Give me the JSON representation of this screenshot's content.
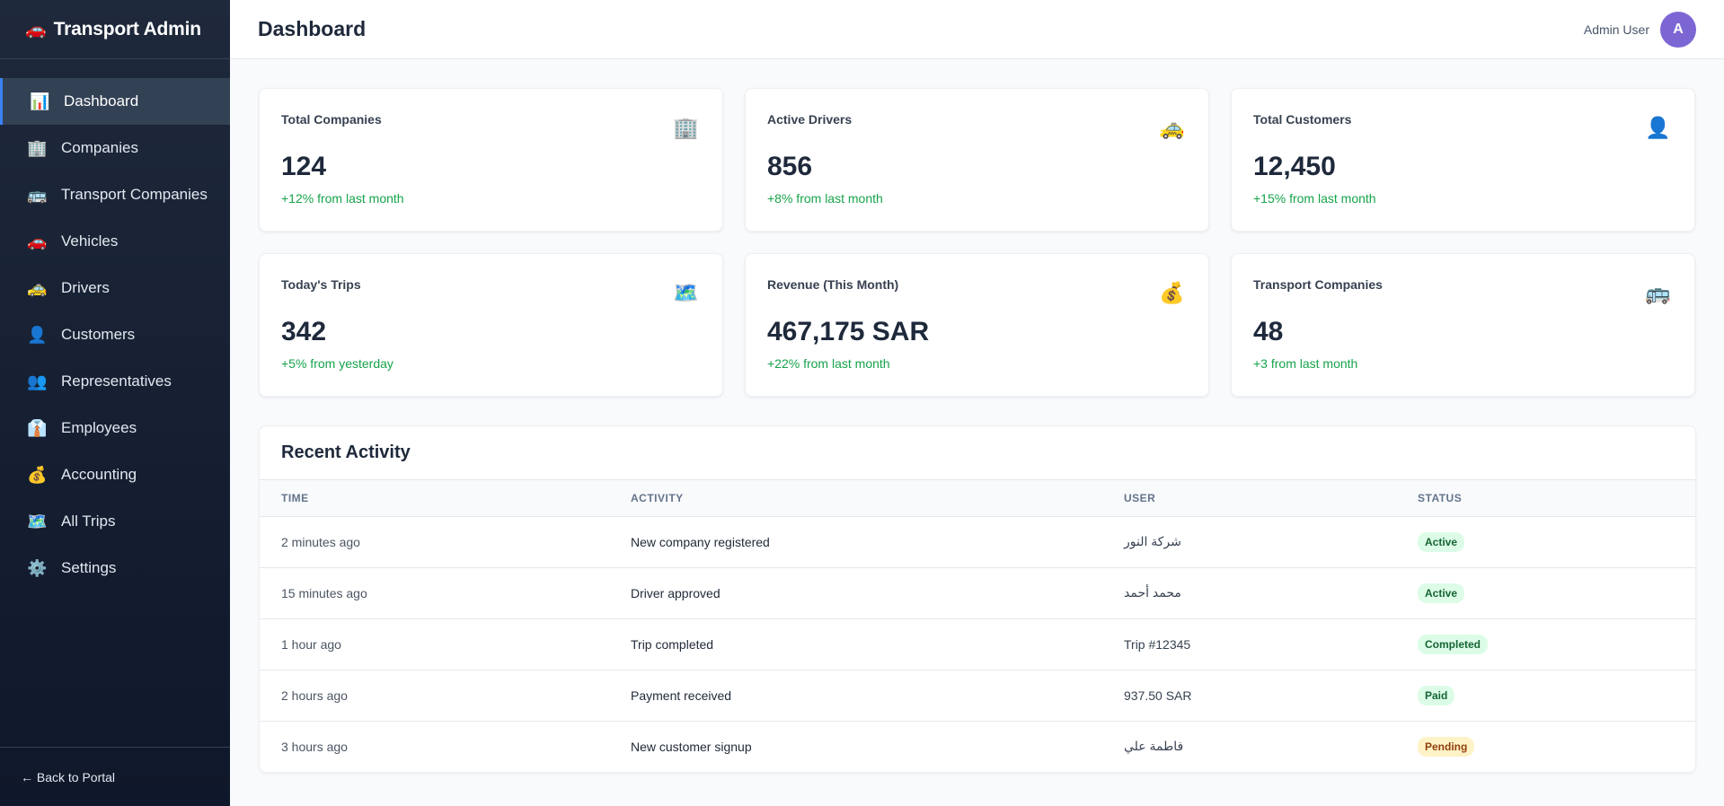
{
  "brand": {
    "title": "Transport Admin",
    "icon": "🚗"
  },
  "nav": [
    {
      "label": "Dashboard",
      "icon": "📊",
      "name": "dashboard",
      "active": true
    },
    {
      "label": "Companies",
      "icon": "🏢",
      "name": "companies"
    },
    {
      "label": "Transport Companies",
      "icon": "🚌",
      "name": "transport-companies"
    },
    {
      "label": "Vehicles",
      "icon": "🚗",
      "name": "vehicles"
    },
    {
      "label": "Drivers",
      "icon": "🚕",
      "name": "drivers"
    },
    {
      "label": "Customers",
      "icon": "👤",
      "name": "customers"
    },
    {
      "label": "Representatives",
      "icon": "👥",
      "name": "representatives"
    },
    {
      "label": "Employees",
      "icon": "👔",
      "name": "employees"
    },
    {
      "label": "Accounting",
      "icon": "💰",
      "name": "accounting"
    },
    {
      "label": "All Trips",
      "icon": "🗺️",
      "name": "all-trips"
    },
    {
      "label": "Settings",
      "icon": "⚙️",
      "name": "settings"
    }
  ],
  "footer": {
    "back_label": "← Back to Portal"
  },
  "header": {
    "title": "Dashboard",
    "user_name": "Admin User",
    "avatar_initial": "A"
  },
  "stats": [
    {
      "label": "Total Companies",
      "value": "124",
      "change": "+12% from last month",
      "icon": "🏢",
      "icon_name": "building-icon"
    },
    {
      "label": "Active Drivers",
      "value": "856",
      "change": "+8% from last month",
      "icon": "🚕",
      "icon_name": "taxi-icon"
    },
    {
      "label": "Total Customers",
      "value": "12,450",
      "change": "+15% from last month",
      "icon": "👤",
      "icon_name": "user-icon"
    },
    {
      "label": "Today's Trips",
      "value": "342",
      "change": "+5% from yesterday",
      "icon": "🗺️",
      "icon_name": "map-icon"
    },
    {
      "label": "Revenue (This Month)",
      "value": "467,175 SAR",
      "change": "+22% from last month",
      "icon": "💰",
      "icon_name": "money-bag-icon"
    },
    {
      "label": "Transport Companies",
      "value": "48",
      "change": "+3 from last month",
      "icon": "🚌",
      "icon_name": "bus-icon"
    }
  ],
  "activity": {
    "title": "Recent Activity",
    "columns": [
      "TIME",
      "ACTIVITY",
      "USER",
      "STATUS"
    ],
    "rows": [
      {
        "time": "2 minutes ago",
        "activity": "New company registered",
        "user": "شركة النور",
        "status": "Active",
        "tone": "green"
      },
      {
        "time": "15 minutes ago",
        "activity": "Driver approved",
        "user": "محمد أحمد",
        "status": "Active",
        "tone": "green"
      },
      {
        "time": "1 hour ago",
        "activity": "Trip completed",
        "user": "Trip #12345",
        "status": "Completed",
        "tone": "green"
      },
      {
        "time": "2 hours ago",
        "activity": "Payment received",
        "user": "937.50 SAR",
        "status": "Paid",
        "tone": "green"
      },
      {
        "time": "3 hours ago",
        "activity": "New customer signup",
        "user": "فاطمة علي",
        "status": "Pending",
        "tone": "yellow"
      }
    ]
  }
}
